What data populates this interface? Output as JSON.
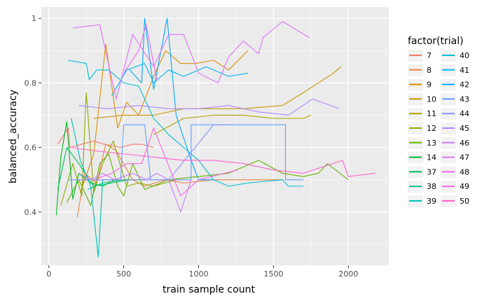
{
  "chart_data": {
    "type": "line",
    "xlabel": "train sample count",
    "ylabel": "balanced_accuracy",
    "xlim": [
      -50,
      2270
    ],
    "ylim": [
      0.235,
      1.035
    ],
    "xticks": [
      0,
      500,
      1000,
      1500,
      2000
    ],
    "yticks": [
      0.4,
      0.6,
      0.8,
      1.0
    ],
    "ytick_labels": [
      "0.4",
      "0.6",
      "0.8",
      "1"
    ],
    "grid": true,
    "panel_background": "#ebebeb",
    "legend": {
      "title": "factor(trial)",
      "placement": "right",
      "columns": 2
    },
    "series": [
      {
        "name": "7",
        "color": "#F8766D",
        "points": [
          [
            60,
            0.61
          ],
          [
            130,
            0.66
          ],
          [
            140,
            0.6
          ],
          [
            300,
            0.62
          ],
          [
            370,
            0.61
          ],
          [
            480,
            0.6
          ],
          [
            560,
            0.61
          ],
          [
            620,
            0.61
          ],
          [
            700,
            0.6
          ]
        ]
      },
      {
        "name": "8",
        "color": "#EC8239",
        "points": [
          [
            190,
            0.385
          ],
          [
            240,
            0.52
          ],
          [
            320,
            0.49
          ],
          [
            380,
            0.61
          ],
          [
            450,
            0.59
          ],
          [
            560,
            0.5
          ],
          [
            640,
            0.48
          ],
          [
            780,
            0.5
          ],
          [
            900,
            0.49
          ],
          [
            1100,
            0.5
          ],
          [
            1300,
            0.5
          ],
          [
            1560,
            0.5
          ]
        ]
      },
      {
        "name": "9",
        "color": "#DB8E00",
        "points": [
          [
            210,
            0.46
          ],
          [
            300,
            0.58
          ],
          [
            380,
            0.92
          ],
          [
            460,
            0.66
          ],
          [
            520,
            0.74
          ],
          [
            600,
            0.7
          ],
          [
            700,
            0.82
          ],
          [
            780,
            0.9
          ],
          [
            880,
            0.86
          ],
          [
            980,
            0.86
          ],
          [
            1100,
            0.87
          ],
          [
            1200,
            0.84
          ],
          [
            1330,
            0.9
          ]
        ]
      },
      {
        "name": "10",
        "color": "#C79800",
        "points": [
          [
            300,
            0.69
          ],
          [
            500,
            0.7
          ],
          [
            700,
            0.7
          ],
          [
            900,
            0.72
          ],
          [
            1100,
            0.72
          ],
          [
            1300,
            0.72
          ],
          [
            1560,
            0.73
          ],
          [
            1700,
            0.77
          ],
          [
            1900,
            0.83
          ],
          [
            1950,
            0.85
          ]
        ]
      },
      {
        "name": "11",
        "color": "#AEA200",
        "points": [
          [
            700,
            0.64
          ],
          [
            900,
            0.69
          ],
          [
            1100,
            0.7
          ],
          [
            1300,
            0.7
          ],
          [
            1500,
            0.69
          ],
          [
            1700,
            0.69
          ],
          [
            1750,
            0.7
          ]
        ]
      },
      {
        "name": "12",
        "color": "#8FAA00",
        "points": [
          [
            80,
            0.42
          ],
          [
            160,
            0.55
          ],
          [
            220,
            0.45
          ],
          [
            250,
            0.77
          ],
          [
            300,
            0.46
          ],
          [
            360,
            0.55
          ],
          [
            430,
            0.62
          ],
          [
            520,
            0.48
          ],
          [
            600,
            0.49
          ],
          [
            700,
            0.48
          ],
          [
            850,
            0.5
          ]
        ]
      },
      {
        "name": "13",
        "color": "#64B200",
        "points": [
          [
            120,
            0.43
          ],
          [
            200,
            0.5
          ],
          [
            280,
            0.42
          ],
          [
            340,
            0.55
          ],
          [
            400,
            0.58
          ],
          [
            460,
            0.48
          ],
          [
            500,
            0.45
          ],
          [
            560,
            0.55
          ],
          [
            640,
            0.47
          ],
          [
            800,
            0.5
          ],
          [
            1000,
            0.51
          ],
          [
            1200,
            0.52
          ],
          [
            1400,
            0.56
          ],
          [
            1560,
            0.52
          ],
          [
            1700,
            0.51
          ],
          [
            1800,
            0.52
          ],
          [
            1860,
            0.55
          ],
          [
            2000,
            0.5
          ]
        ]
      },
      {
        "name": "14",
        "color": "#00B81F",
        "points": [
          [
            50,
            0.39
          ],
          [
            80,
            0.57
          ],
          [
            120,
            0.68
          ],
          [
            160,
            0.44
          ],
          [
            200,
            0.52
          ],
          [
            280,
            0.49
          ],
          [
            360,
            0.48
          ],
          [
            440,
            0.5
          ],
          [
            520,
            0.5
          ],
          [
            640,
            0.5
          ]
        ]
      },
      {
        "name": "37",
        "color": "#00BD5C",
        "points": [
          [
            60,
            0.47
          ],
          [
            120,
            0.6
          ],
          [
            200,
            0.55
          ],
          [
            300,
            0.48
          ],
          [
            420,
            0.49
          ],
          [
            540,
            0.5
          ]
        ]
      },
      {
        "name": "38",
        "color": "#00C08B",
        "points": [
          [
            260,
            0.47
          ],
          [
            360,
            0.49
          ],
          [
            500,
            0.5
          ]
        ]
      },
      {
        "name": "39",
        "color": "#00C1B2",
        "points": [
          [
            150,
            0.69
          ],
          [
            210,
            0.56
          ],
          [
            280,
            0.48
          ],
          [
            330,
            0.26
          ],
          [
            360,
            0.5
          ],
          [
            450,
            0.5
          ]
        ]
      },
      {
        "name": "40",
        "color": "#00BFD4",
        "points": [
          [
            130,
            0.87
          ],
          [
            250,
            0.86
          ],
          [
            270,
            0.81
          ],
          [
            320,
            0.84
          ],
          [
            400,
            0.84
          ],
          [
            500,
            0.8
          ],
          [
            600,
            0.79
          ],
          [
            700,
            0.69
          ],
          [
            800,
            0.64
          ],
          [
            900,
            0.6
          ],
          [
            1000,
            0.56
          ],
          [
            1100,
            0.5
          ],
          [
            1200,
            0.48
          ],
          [
            1330,
            0.49
          ],
          [
            1560,
            0.5
          ],
          [
            1600,
            0.48
          ],
          [
            1700,
            0.48
          ]
        ]
      },
      {
        "name": "41",
        "color": "#00B8EF",
        "points": [
          [
            420,
            0.76
          ],
          [
            520,
            0.84
          ],
          [
            640,
            0.86
          ],
          [
            700,
            0.8
          ],
          [
            800,
            0.84
          ],
          [
            900,
            0.82
          ],
          [
            1050,
            0.85
          ],
          [
            1200,
            0.82
          ],
          [
            1330,
            0.83
          ]
        ]
      },
      {
        "name": "42",
        "color": "#00ABFD",
        "points": [
          [
            540,
            0.84
          ],
          [
            620,
            0.8
          ],
          [
            640,
            1.0
          ],
          [
            700,
            0.78
          ],
          [
            790,
            1.0
          ],
          [
            850,
            0.7
          ],
          [
            950,
            0.56
          ],
          [
            1000,
            0.5
          ],
          [
            1100,
            0.5
          ]
        ]
      },
      {
        "name": "43",
        "color": "#619CFF",
        "points": [
          [
            480,
            0.5
          ],
          [
            500,
            0.67
          ],
          [
            640,
            0.67
          ],
          [
            680,
            0.5
          ],
          [
            950,
            0.5
          ],
          [
            950,
            0.67
          ],
          [
            1580,
            0.67
          ],
          [
            1580,
            0.5
          ],
          [
            1700,
            0.5
          ]
        ]
      },
      {
        "name": "44",
        "color": "#8B93FF",
        "points": [
          [
            130,
            0.5
          ],
          [
            320,
            0.5
          ],
          [
            540,
            0.5
          ],
          [
            800,
            0.5
          ],
          [
            1100,
            0.67
          ],
          [
            1200,
            0.67
          ]
        ]
      },
      {
        "name": "45",
        "color": "#AE87FF",
        "points": [
          [
            200,
            0.73
          ],
          [
            390,
            0.72
          ],
          [
            600,
            0.73
          ],
          [
            800,
            0.72
          ],
          [
            1000,
            0.72
          ],
          [
            1200,
            0.73
          ],
          [
            1400,
            0.71
          ],
          [
            1600,
            0.7
          ],
          [
            1760,
            0.75
          ],
          [
            1940,
            0.72
          ]
        ]
      },
      {
        "name": "46",
        "color": "#C77CFF",
        "points": [
          [
            200,
            0.52
          ],
          [
            280,
            0.5
          ],
          [
            360,
            0.52
          ],
          [
            440,
            0.5
          ],
          [
            560,
            0.52
          ],
          [
            650,
            0.5
          ],
          [
            720,
            0.52
          ],
          [
            800,
            0.5
          ],
          [
            880,
            0.4
          ],
          [
            950,
            0.5
          ]
        ]
      },
      {
        "name": "47",
        "color": "#DE71F9",
        "points": [
          [
            160,
            0.97
          ],
          [
            340,
            0.98
          ],
          [
            450,
            0.75
          ],
          [
            560,
            0.95
          ],
          [
            700,
            0.85
          ],
          [
            800,
            0.95
          ],
          [
            900,
            0.95
          ],
          [
            1000,
            0.83
          ],
          [
            1130,
            0.8
          ],
          [
            1200,
            0.88
          ],
          [
            1300,
            0.93
          ],
          [
            1400,
            0.89
          ],
          [
            1430,
            0.94
          ],
          [
            1560,
            0.99
          ],
          [
            1740,
            0.94
          ]
        ]
      },
      {
        "name": "48",
        "color": "#ED68ED",
        "points": [
          [
            500,
            0.83
          ],
          [
            600,
            0.9
          ],
          [
            650,
            0.98
          ],
          [
            720,
            0.81
          ]
        ]
      },
      {
        "name": "49",
        "color": "#F863DF",
        "points": [
          [
            300,
            0.5
          ],
          [
            420,
            0.52
          ],
          [
            520,
            0.55
          ],
          [
            620,
            0.55
          ],
          [
            700,
            0.66
          ],
          [
            880,
            0.45
          ],
          [
            1000,
            0.5
          ],
          [
            1260,
            0.53
          ]
        ]
      },
      {
        "name": "50",
        "color": "#FE61CF",
        "points": [
          [
            150,
            0.6
          ],
          [
            300,
            0.59
          ],
          [
            500,
            0.58
          ],
          [
            700,
            0.57
          ],
          [
            900,
            0.56
          ],
          [
            1100,
            0.56
          ],
          [
            1300,
            0.55
          ],
          [
            1500,
            0.53
          ],
          [
            1700,
            0.52
          ],
          [
            1960,
            0.56
          ],
          [
            2000,
            0.51
          ],
          [
            2180,
            0.52
          ]
        ]
      }
    ]
  }
}
